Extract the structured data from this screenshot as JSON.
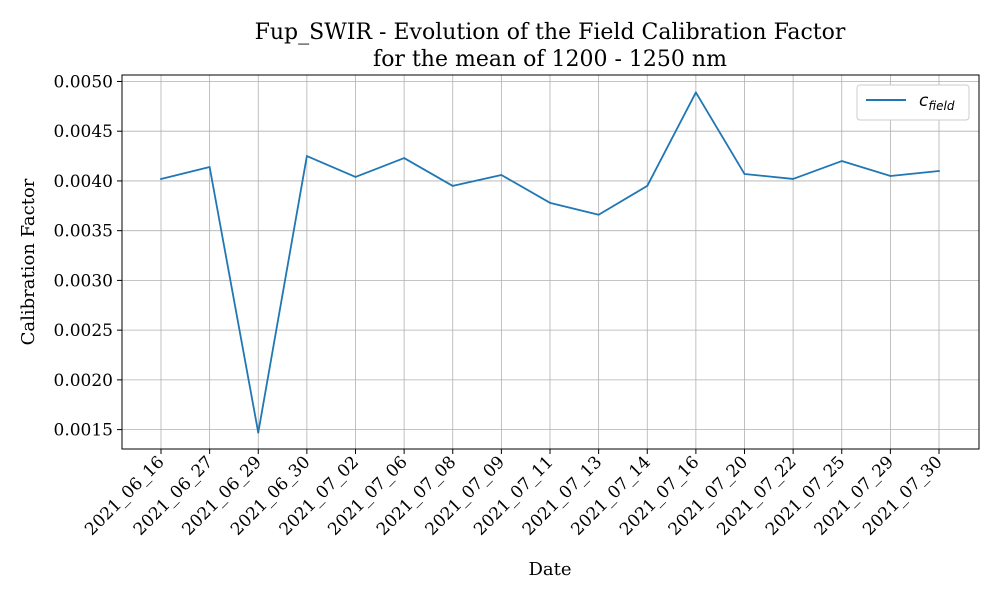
{
  "chart_data": {
    "type": "line",
    "title": [
      "Fup_SWIR - Evolution of the Field Calibration Factor",
      "for the mean of 1200 - 1250 nm"
    ],
    "xlabel": "Date",
    "ylabel": "Calibration Factor",
    "categories": [
      "2021_06_16",
      "2021_06_27",
      "2021_06_29",
      "2021_06_30",
      "2021_07_02",
      "2021_07_06",
      "2021_07_08",
      "2021_07_09",
      "2021_07_11",
      "2021_07_13",
      "2021_07_14",
      "2021_07_16",
      "2021_07_20",
      "2021_07_22",
      "2021_07_25",
      "2021_07_29",
      "2021_07_30"
    ],
    "series": [
      {
        "name": "c_field",
        "legend_main": "c",
        "legend_sub": "field",
        "color": "#1f77b4",
        "values": [
          0.00402,
          0.00414,
          0.00147,
          0.00425,
          0.00404,
          0.00423,
          0.00395,
          0.00406,
          0.00378,
          0.00366,
          0.00395,
          0.00489,
          0.00407,
          0.00402,
          0.0042,
          0.00405,
          0.0041
        ]
      }
    ],
    "yticks": [
      0.0015,
      0.002,
      0.0025,
      0.003,
      0.0035,
      0.004,
      0.0045,
      0.005
    ],
    "ytick_labels": [
      "0.0015",
      "0.0020",
      "0.0025",
      "0.0030",
      "0.0035",
      "0.0040",
      "0.0045",
      "0.0050"
    ],
    "ylim": [
      0.001305,
      0.005065
    ],
    "grid": true,
    "legend_position": "top-right",
    "colors": {
      "grid": "#b0b0b0",
      "axes": "#000000",
      "background": "#ffffff"
    }
  }
}
